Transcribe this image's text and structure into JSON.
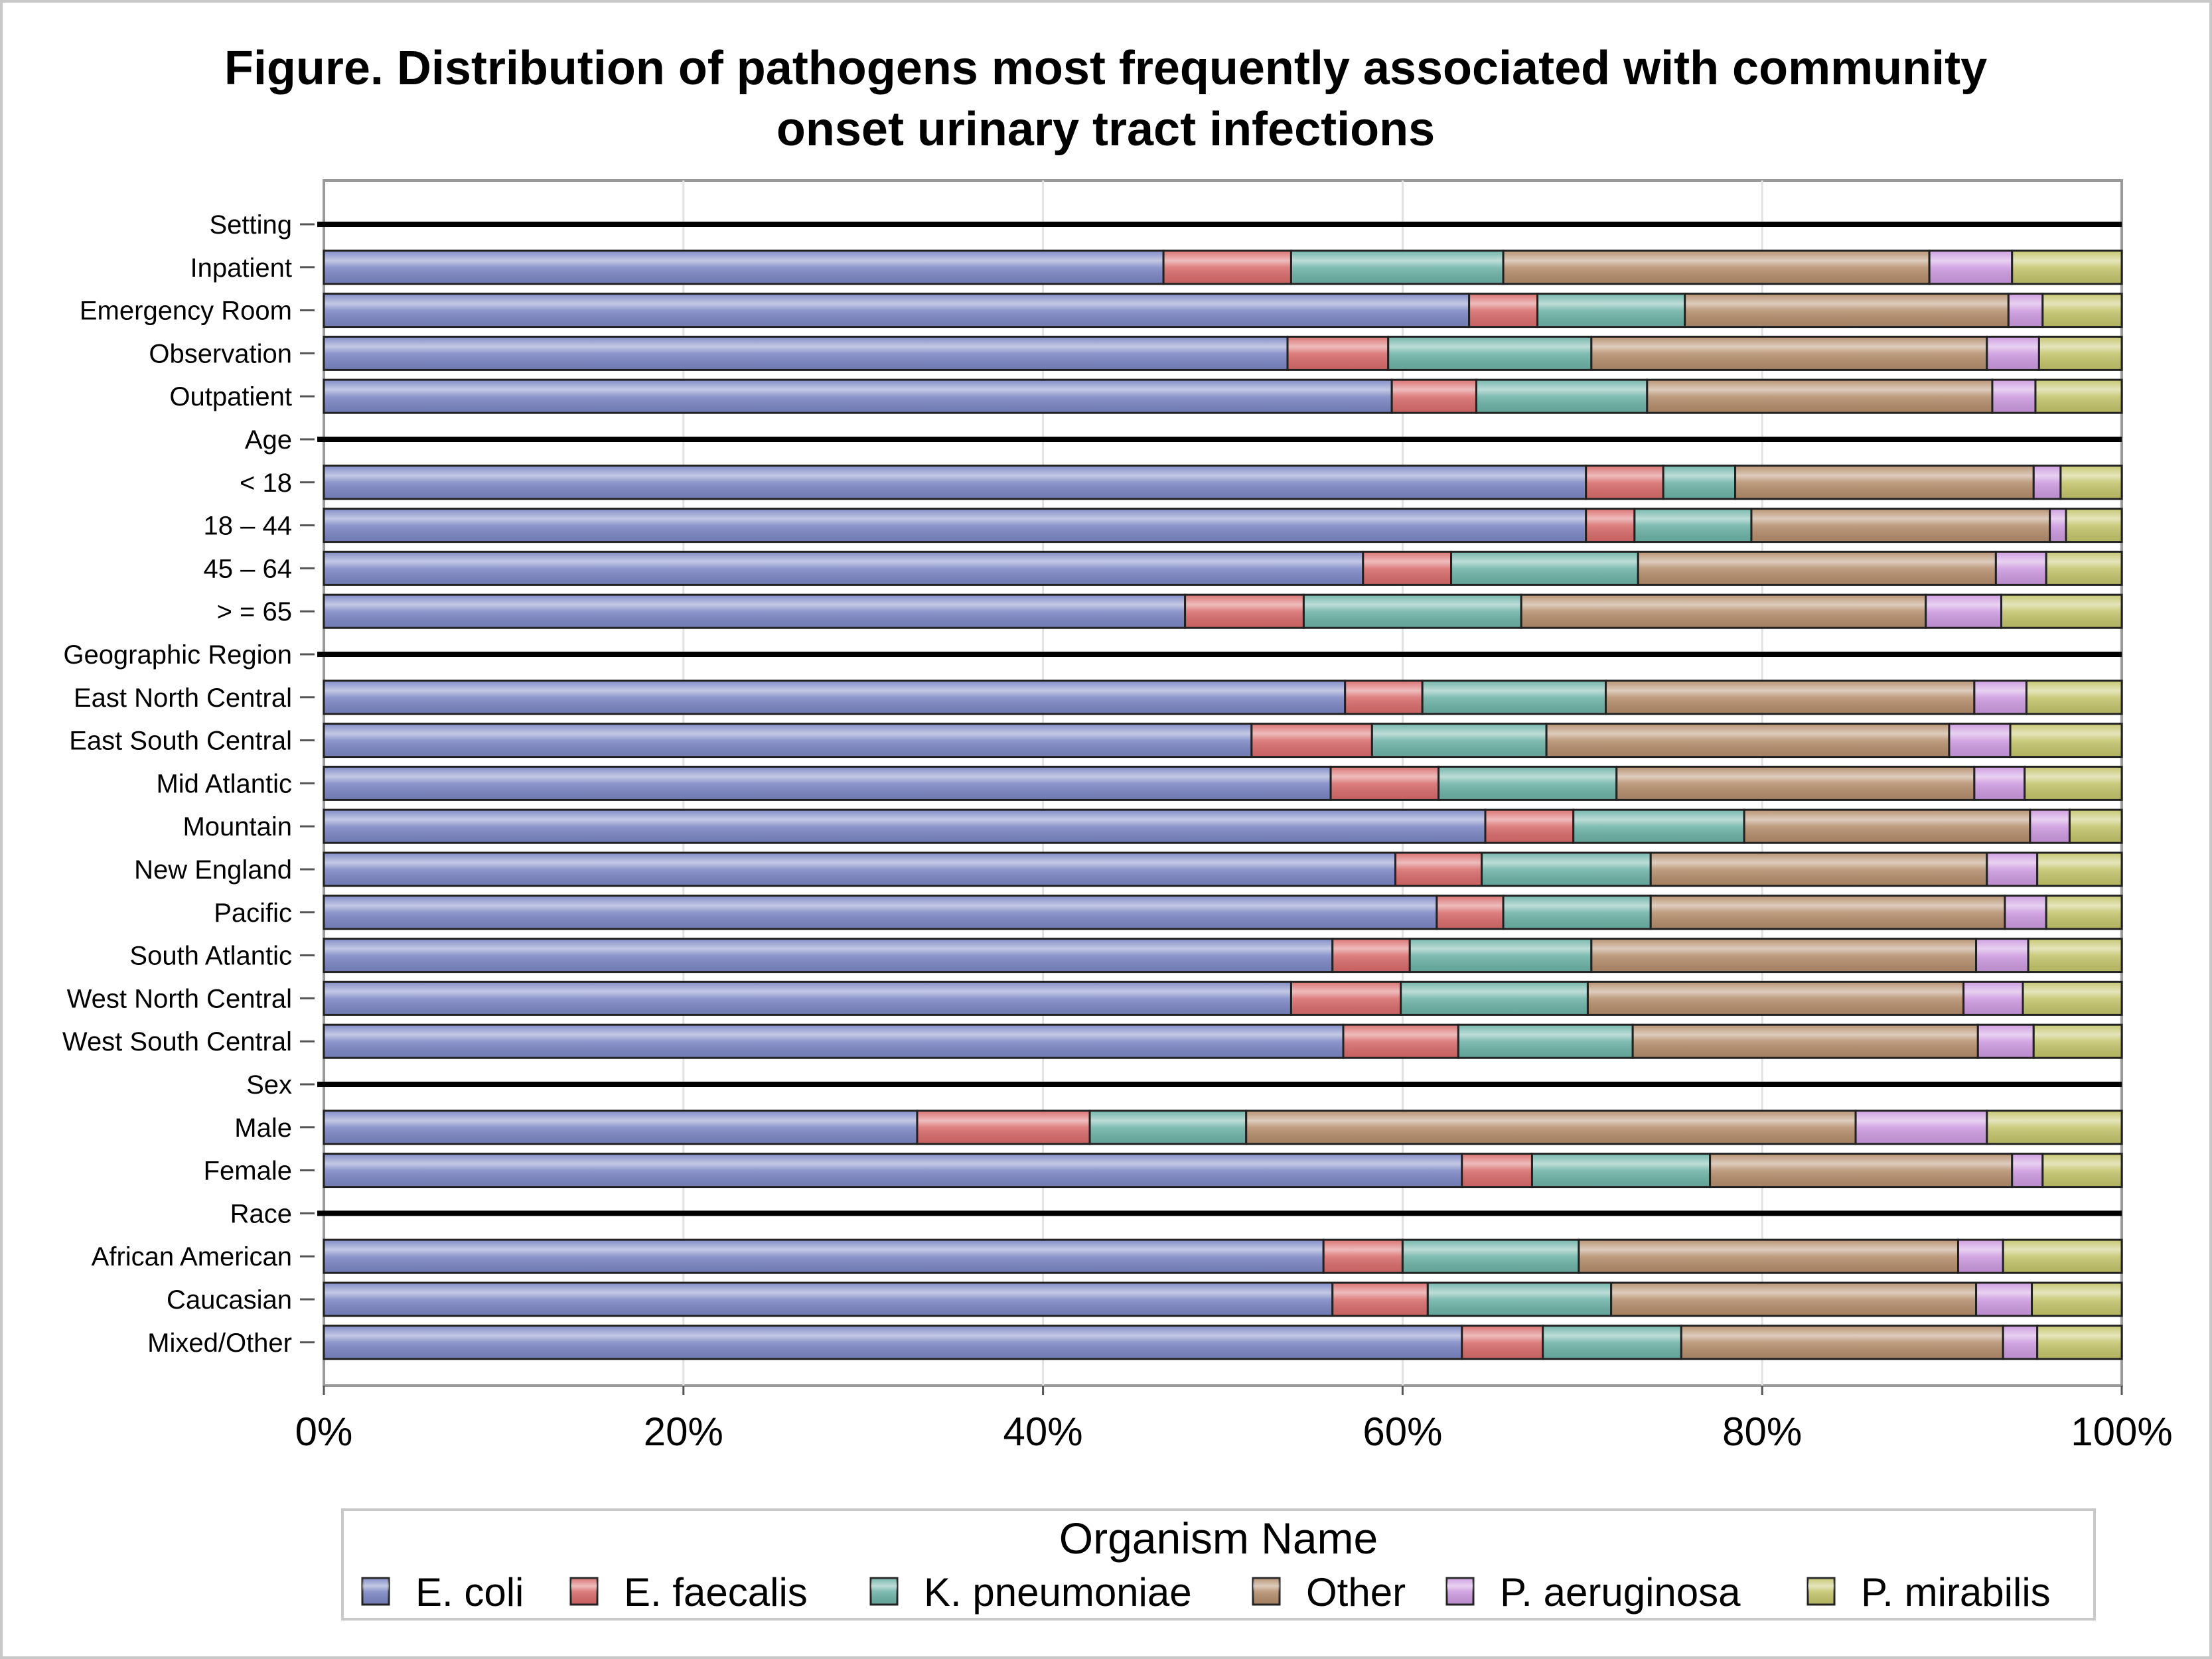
{
  "chart_data": {
    "type": "bar",
    "orientation": "horizontal",
    "stacked": true,
    "title_lines": [
      "Figure. Distribution of pathogens most frequently associated with community",
      "onset urinary tract infections"
    ],
    "x_ticks": [
      "0%",
      "20%",
      "40%",
      "60%",
      "80%",
      "100%"
    ],
    "xlim": [
      0,
      100
    ],
    "grid": true,
    "legend": {
      "title": "Organism Name",
      "placement": "bottom"
    },
    "series": [
      {
        "name": "E. coli",
        "color": "#7b86c4"
      },
      {
        "name": "E. faecalis",
        "color": "#d86a6a"
      },
      {
        "name": "K. pneumoniae",
        "color": "#6cb2a6"
      },
      {
        "name": "Other",
        "color": "#b48d6b"
      },
      {
        "name": "P. aeruginosa",
        "color": "#cc99df"
      },
      {
        "name": "P. mirabilis",
        "color": "#c3c46a"
      }
    ],
    "rows": [
      {
        "label": "Setting",
        "header": true
      },
      {
        "label": "Inpatient",
        "values": [
          46.7,
          7.1,
          11.8,
          23.7,
          4.6,
          6.1
        ]
      },
      {
        "label": "Emergency Room",
        "values": [
          63.7,
          3.8,
          8.2,
          18.0,
          1.9,
          4.4
        ]
      },
      {
        "label": "Observation",
        "values": [
          53.6,
          5.6,
          11.3,
          22.0,
          2.9,
          4.6
        ]
      },
      {
        "label": "Outpatient",
        "values": [
          59.4,
          4.7,
          9.5,
          19.2,
          2.4,
          4.8
        ]
      },
      {
        "label": "Age",
        "header": true
      },
      {
        "label": "< 18",
        "values": [
          70.2,
          4.3,
          4.0,
          16.6,
          1.5,
          3.4
        ]
      },
      {
        "label": "18 – 44",
        "values": [
          70.2,
          2.7,
          6.5,
          16.6,
          0.9,
          3.1
        ]
      },
      {
        "label": "45 – 64",
        "values": [
          57.8,
          4.9,
          10.4,
          19.9,
          2.8,
          4.2
        ]
      },
      {
        "label": "> = 65",
        "values": [
          47.9,
          6.6,
          12.1,
          22.5,
          4.2,
          6.7
        ]
      },
      {
        "label": "Geographic Region",
        "header": true
      },
      {
        "label": "East North Central",
        "values": [
          56.8,
          4.3,
          10.2,
          20.5,
          2.9,
          5.3
        ]
      },
      {
        "label": "East South Central",
        "values": [
          51.6,
          6.7,
          9.7,
          22.4,
          3.4,
          6.2
        ]
      },
      {
        "label": "Mid Atlantic",
        "values": [
          56.0,
          6.0,
          9.9,
          19.9,
          2.8,
          5.4
        ]
      },
      {
        "label": "Mountain",
        "values": [
          64.6,
          4.9,
          9.5,
          15.9,
          2.2,
          2.9
        ]
      },
      {
        "label": "New England",
        "values": [
          59.6,
          4.8,
          9.4,
          18.7,
          2.8,
          4.7
        ]
      },
      {
        "label": "Pacific",
        "values": [
          61.9,
          3.7,
          8.2,
          19.7,
          2.3,
          4.2
        ]
      },
      {
        "label": "South Atlantic",
        "values": [
          56.1,
          4.3,
          10.1,
          21.4,
          2.9,
          5.2
        ]
      },
      {
        "label": "West North Central",
        "values": [
          53.8,
          6.1,
          10.4,
          20.9,
          3.3,
          5.5
        ]
      },
      {
        "label": "West South Central",
        "values": [
          56.7,
          6.4,
          9.7,
          19.2,
          3.1,
          4.9
        ]
      },
      {
        "label": "Sex",
        "header": true
      },
      {
        "label": "Male",
        "values": [
          33.0,
          9.6,
          8.7,
          33.9,
          7.3,
          7.5
        ]
      },
      {
        "label": "Female",
        "values": [
          63.3,
          3.9,
          9.9,
          16.8,
          1.7,
          4.4
        ]
      },
      {
        "label": "Race",
        "header": true
      },
      {
        "label": "African American",
        "values": [
          55.6,
          4.4,
          9.8,
          21.1,
          2.5,
          6.6
        ]
      },
      {
        "label": "Caucasian",
        "values": [
          56.1,
          5.3,
          10.2,
          20.3,
          3.1,
          5.0
        ]
      },
      {
        "label": "Mixed/Other",
        "values": [
          63.3,
          4.5,
          7.7,
          17.9,
          1.9,
          4.7
        ]
      }
    ]
  }
}
